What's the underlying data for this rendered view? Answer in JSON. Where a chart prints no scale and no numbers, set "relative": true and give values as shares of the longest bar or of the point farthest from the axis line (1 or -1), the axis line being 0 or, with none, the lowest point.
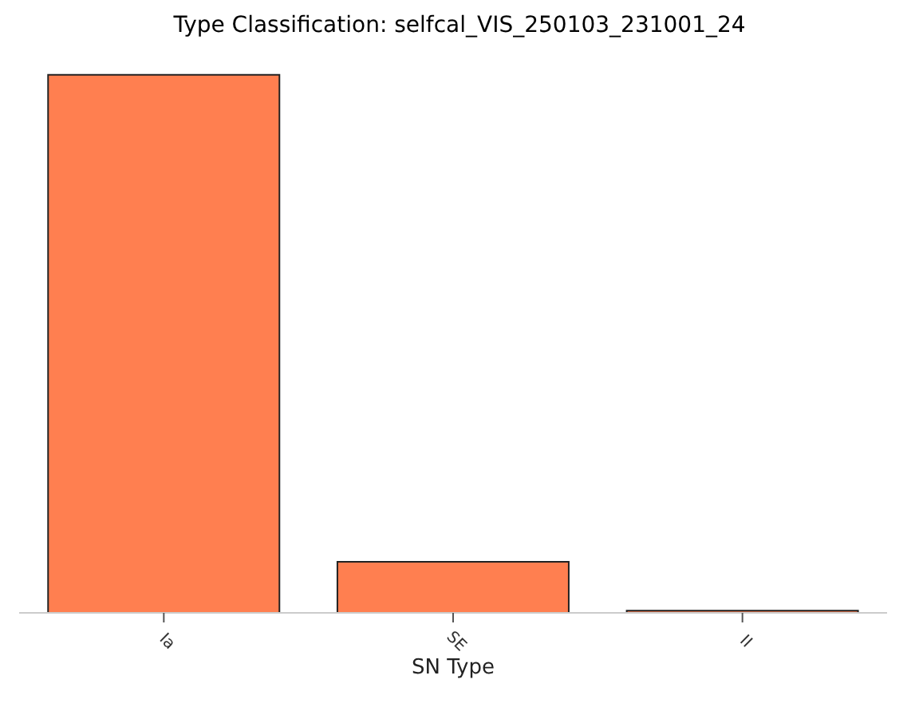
{
  "chart_data": {
    "type": "bar",
    "title": "Type Classification: selfcal_VIS_250103_231001_24",
    "xlabel": "SN Type",
    "categories": [
      "Ia",
      "SE",
      "II"
    ],
    "values": [
      1,
      0.095,
      0.004
    ],
    "color": "#ff7f50",
    "relative": true
  }
}
